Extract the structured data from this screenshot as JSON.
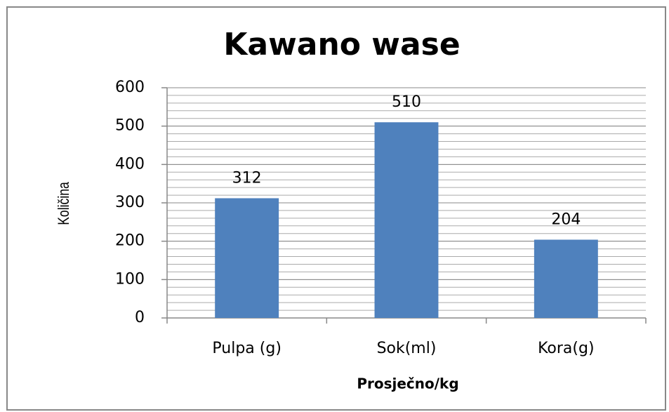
{
  "chart_data": {
    "type": "bar",
    "title": "Kawano wase",
    "categories": [
      "Pulpa (g)",
      "Sok(ml)",
      "Kora(g)"
    ],
    "values": [
      312,
      510,
      204
    ],
    "color": "#4f81bd",
    "ylim": [
      0,
      600
    ],
    "yticks": [
      0,
      100,
      200,
      300,
      400,
      500,
      600
    ],
    "grid": true,
    "yminor_step": 20,
    "y_label": "Količina",
    "x_label": "Prosječno/kg"
  }
}
